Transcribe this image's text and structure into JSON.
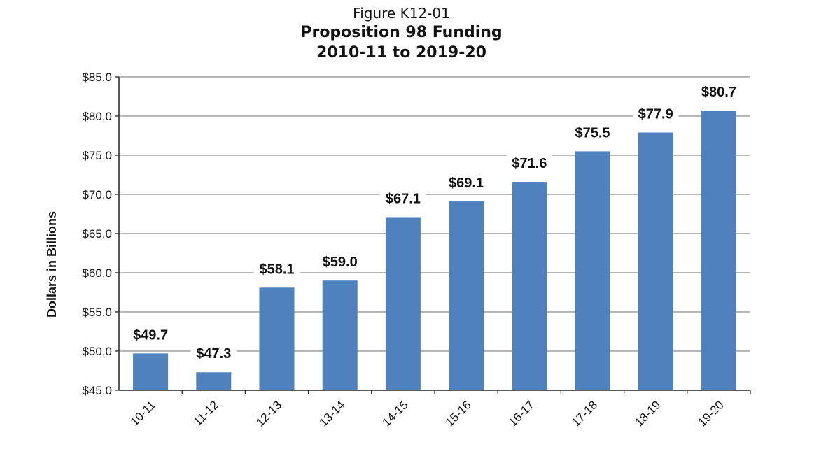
{
  "figure_number": "Figure K12-01",
  "chart_data": {
    "type": "bar",
    "title": "Proposition 98 Funding",
    "subtitle": "2010-11 to 2019-20",
    "xlabel": "",
    "ylabel": "Dollars in Billions",
    "categories": [
      "10-11",
      "11-12",
      "12-13",
      "13-14",
      "14-15",
      "15-16",
      "16-17",
      "17-18",
      "18-19",
      "19-20"
    ],
    "values": [
      49.7,
      47.3,
      58.1,
      59.0,
      67.1,
      69.1,
      71.6,
      75.5,
      77.9,
      80.7
    ],
    "data_labels": [
      "$49.7",
      "$47.3",
      "$58.1",
      "$59.0",
      "$67.1",
      "$69.1",
      "$71.6",
      "$75.5",
      "$77.9",
      "$80.7"
    ],
    "ylim": [
      45,
      85
    ],
    "yticks": [
      45,
      50,
      55,
      60,
      65,
      70,
      75,
      80,
      85
    ],
    "ytick_labels": [
      "$45.0",
      "$50.0",
      "$55.0",
      "$60.0",
      "$65.0",
      "$70.0",
      "$75.0",
      "$80.0",
      "$85.0"
    ],
    "grid": true,
    "bar_color": "#4f81bd",
    "grid_color": "#8c8c8c"
  }
}
